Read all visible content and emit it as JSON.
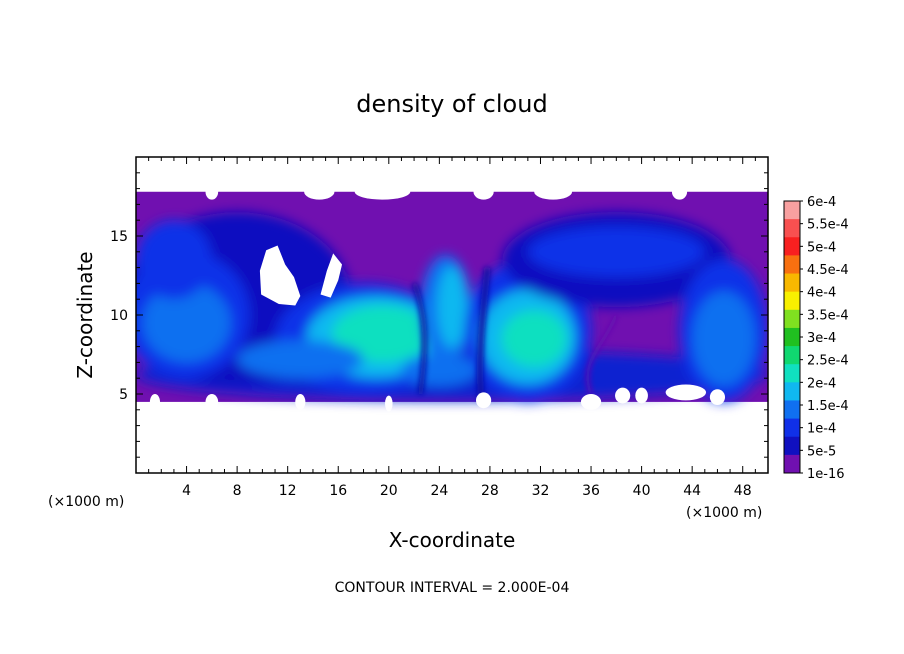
{
  "chart_data": {
    "type": "heatmap",
    "title": "density of cloud",
    "xlabel": "X-coordinate",
    "ylabel": "Z-coordinate",
    "x_unit": "(×1000 m)",
    "y_unit": "(×1000 m)",
    "xlim": [
      0,
      50
    ],
    "ylim": [
      0,
      20
    ],
    "x_ticks": [
      4,
      8,
      12,
      16,
      20,
      24,
      28,
      32,
      36,
      40,
      44,
      48
    ],
    "y_ticks": [
      5,
      10,
      15
    ],
    "footer": "CONTOUR INTERVAL = 2.000E-04",
    "colorbar": {
      "labels": [
        "6e-4",
        "5.5e-4",
        "5e-4",
        "4.5e-4",
        "4e-4",
        "3.5e-4",
        "3e-4",
        "2.5e-4",
        "2e-4",
        "1.5e-4",
        "1e-4",
        "5e-5",
        "1e-16"
      ],
      "colors": [
        "#f8a0a0",
        "#f85050",
        "#f82020",
        "#f87010",
        "#f8b800",
        "#f8f000",
        "#80e020",
        "#20c020",
        "#10d870",
        "#10e0c0",
        "#10b8f0",
        "#1070f0",
        "#1030e8",
        "#1010c0",
        "#7010b0"
      ]
    },
    "cloud_region": {
      "z_bottom": 4.5,
      "z_top": 17.8,
      "clear_holes": [
        {
          "x_center": 11.0,
          "z_center": 12.0
        },
        {
          "x_center": 15.0,
          "z_center": 12.5
        }
      ],
      "density_cores": [
        {
          "x": 19.5,
          "z": 8.8,
          "value": 0.0002
        },
        {
          "x": 31.5,
          "z": 8.5,
          "value": 0.0002
        },
        {
          "x": 25.0,
          "z": 10.5,
          "value": 0.00015
        },
        {
          "x": 4.0,
          "z": 9.5,
          "value": 0.0001
        },
        {
          "x": 46.5,
          "z": 8.5,
          "value": 0.0001
        }
      ]
    }
  }
}
